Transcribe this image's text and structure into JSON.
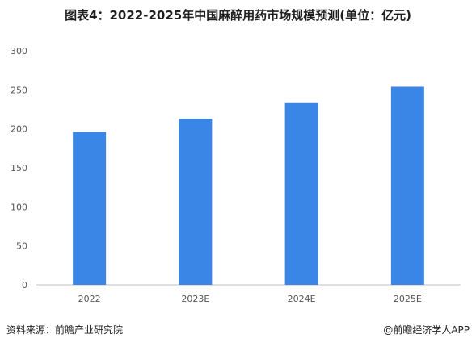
{
  "title": "图表4：2022-2025年中国麻醉用药市场规模预测(单位：亿元)",
  "footer": {
    "source": "资料来源：前瞻产业研究院",
    "credit": "@前瞻经济学人APP"
  },
  "colors": {
    "bar": "#3a86e6",
    "axis": "#bfbfbf",
    "tick_text": "#555555"
  },
  "chart_data": {
    "type": "bar",
    "categories": [
      "2022",
      "2023E",
      "2024E",
      "2025E"
    ],
    "values": [
      196,
      213,
      233,
      254
    ],
    "yticks": [
      0,
      50,
      100,
      150,
      200,
      250,
      300
    ],
    "ylim": [
      0,
      300
    ],
    "title": "图表4：2022-2025年中国麻醉用药市场规模预测(单位：亿元)",
    "xlabel": "",
    "ylabel": "",
    "grid": false,
    "legend": "none"
  }
}
